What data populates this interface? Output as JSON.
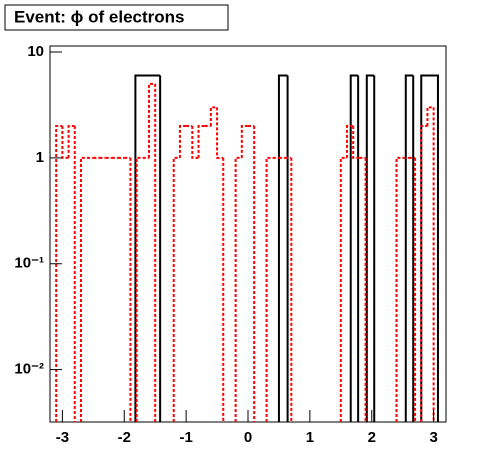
{
  "chart_data": {
    "type": "histogram",
    "title": "Event: ϕ of electrons",
    "xlim": [
      -3.2,
      3.2
    ],
    "xticks": [
      -3,
      -2,
      -1,
      0,
      1,
      2,
      3
    ],
    "ylim": [
      0.0032,
      11.4
    ],
    "log_y": true,
    "yticks": [
      {
        "value": 0.01,
        "label": "10⁻²"
      },
      {
        "value": 0.1,
        "label": "10⁻¹"
      },
      1,
      10
    ],
    "series": [
      {
        "color": "#000000",
        "style": "solid",
        "bins": [
          -1.82,
          -1.42,
          0.5,
          0.64,
          1.66,
          1.78,
          1.92,
          2.04,
          2.55,
          2.67,
          2.8,
          3.07
        ],
        "values": [
          6,
          0,
          6,
          0,
          6,
          0,
          6,
          0,
          6,
          0,
          6
        ]
      },
      {
        "color": "#ff0000",
        "style": "dotted",
        "bins": [
          -3.2,
          -3.1,
          -3.0,
          -2.9,
          -2.8,
          -2.7,
          -2.6,
          -2.5,
          -2.4,
          -2.3,
          -2.2,
          -2.1,
          -2.0,
          -1.9,
          -1.8,
          -1.7,
          -1.6,
          -1.5,
          -1.4,
          -1.3,
          -1.2,
          -1.1,
          -1.0,
          -0.9,
          -0.8,
          -0.7,
          -0.6,
          -0.5,
          -0.4,
          -0.3,
          -0.2,
          -0.1,
          0.0,
          0.1,
          0.2,
          0.3,
          0.4,
          0.5,
          0.6,
          0.7,
          0.8,
          0.9,
          1.0,
          1.1,
          1.2,
          1.3,
          1.4,
          1.5,
          1.6,
          1.7,
          1.8,
          1.9,
          2.0,
          2.1,
          2.2,
          2.3,
          2.4,
          2.5,
          2.6,
          2.7,
          2.8,
          2.9,
          3.0,
          3.1,
          3.2
        ],
        "values": [
          0,
          2,
          1,
          2,
          0,
          1,
          1,
          1,
          1,
          1,
          1,
          1,
          1,
          0,
          1,
          1,
          5,
          0,
          0,
          0,
          1,
          2,
          2,
          1,
          2,
          2,
          3,
          1,
          0,
          0,
          1,
          2,
          2,
          0,
          0,
          1,
          1,
          1,
          1,
          0,
          0,
          0,
          0,
          0,
          0,
          0,
          0,
          1,
          2,
          1,
          1,
          0,
          0,
          0,
          0,
          0,
          1,
          1,
          1,
          0,
          2,
          3,
          0,
          0
        ]
      }
    ]
  }
}
